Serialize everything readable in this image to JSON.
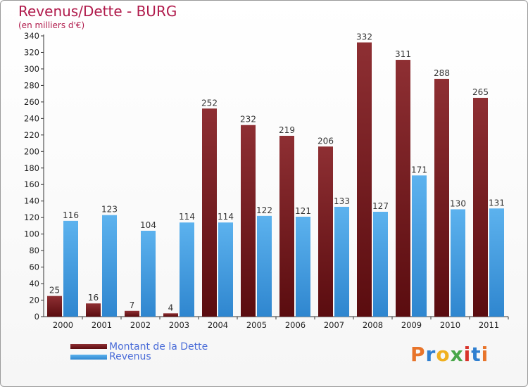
{
  "chart_data": {
    "type": "bar",
    "title": "Revenus/Dette - BURG",
    "subtitle": "(en milliers d'€)",
    "categories": [
      "2000",
      "2001",
      "2002",
      "2003",
      "2004",
      "2005",
      "2006",
      "2007",
      "2008",
      "2009",
      "2010",
      "2011"
    ],
    "series": [
      {
        "name": "Montant de la Dette",
        "color": "#7b1f22",
        "values": [
          25,
          16,
          7,
          4,
          252,
          232,
          219,
          206,
          332,
          311,
          288,
          265
        ]
      },
      {
        "name": "Revenus",
        "color": "#4a9fe0",
        "values": [
          116,
          123,
          104,
          114,
          114,
          122,
          121,
          133,
          127,
          171,
          130,
          131
        ]
      }
    ],
    "ylim": [
      0,
      340
    ],
    "ytick_step": 20,
    "grid": false,
    "legend": "bottom-left"
  },
  "logo": {
    "letters": [
      "P",
      "r",
      "o",
      "x",
      "i",
      "t",
      "i"
    ],
    "colors": [
      "#e8742a",
      "#2f7fd0",
      "#f0b020",
      "#49a64a",
      "#d8332b",
      "#2f7fd0",
      "#e8742a"
    ]
  }
}
